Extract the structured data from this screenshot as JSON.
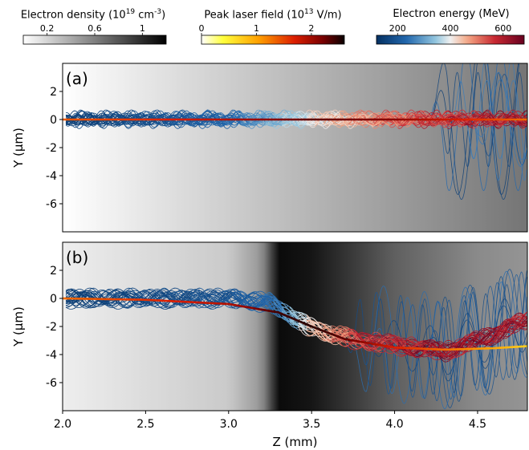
{
  "colorbars": [
    {
      "title_text": "Electron density (10",
      "title_exp": "19",
      "title_unit": " cm",
      "title_unit_exp": "-3",
      "title_close": ")",
      "min": 0,
      "max": 1.2,
      "ticks": [
        0.2,
        0.6,
        1
      ],
      "tick_labels": [
        "0.2",
        "0.6",
        "1"
      ],
      "colormap": "greys"
    },
    {
      "title_text": "Peak laser field (10",
      "title_exp": "13",
      "title_unit": " V/m",
      "title_unit_exp": "",
      "title_close": ")",
      "min": 0,
      "max": 2.6,
      "ticks": [
        0,
        1,
        2
      ],
      "tick_labels": [
        "0",
        "1",
        "2"
      ],
      "colormap": "hot_r"
    },
    {
      "title_text": "Electron energy (MeV)",
      "title_exp": "",
      "title_unit": "",
      "title_unit_exp": "",
      "title_close": "",
      "min": 120,
      "max": 680,
      "ticks": [
        200,
        400,
        600
      ],
      "tick_labels": [
        "200",
        "400",
        "600"
      ],
      "colormap": "RdBu_r"
    }
  ],
  "chart_data": [
    {
      "type": "line",
      "panel_label": "(a)",
      "xlabel": "",
      "ylabel": "Y (μm)",
      "xlim": [
        2.0,
        4.8
      ],
      "ylim": [
        -8,
        4
      ],
      "yticks": [
        2,
        0,
        -2,
        -4,
        -6
      ],
      "ytick_labels": [
        "2",
        "0",
        "-2",
        "-4",
        "-6"
      ],
      "xticks": [],
      "xtick_labels": [],
      "background_density": {
        "z": [
          2.0,
          4.8
        ],
        "n": [
          0.0,
          0.65
        ]
      },
      "laser_centroid": {
        "z": [
          2.0,
          2.5,
          3.0,
          3.5,
          4.0,
          4.5,
          4.8
        ],
        "y": [
          0,
          0,
          0,
          0,
          0,
          0,
          0
        ],
        "field": [
          1.4,
          1.6,
          1.9,
          2.3,
          2.1,
          1.6,
          1.3
        ]
      },
      "electron_bunch": {
        "center": {
          "z": [
            2.0,
            2.5,
            3.0,
            3.5,
            4.0,
            4.5,
            4.8
          ],
          "y": [
            0,
            0,
            0,
            0,
            0,
            0,
            0
          ]
        },
        "oscillation_amplitude": 0.45,
        "betatron_wavelength_mm": 0.17,
        "energy_MeV": {
          "z": [
            2.0,
            2.5,
            3.0,
            3.3,
            3.6,
            4.0,
            4.5,
            4.8
          ],
          "e": [
            150,
            180,
            230,
            330,
            430,
            520,
            590,
            600
          ]
        },
        "scattered_region": {
          "z": [
            4.2,
            4.8
          ],
          "amplitude": 4.0
        }
      }
    },
    {
      "type": "line",
      "panel_label": "(b)",
      "xlabel": "Z (mm)",
      "ylabel": "Y (μm)",
      "xlim": [
        2.0,
        4.8
      ],
      "ylim": [
        -8,
        4
      ],
      "yticks": [
        2,
        0,
        -2,
        -4,
        -6
      ],
      "ytick_labels": [
        "2",
        "0",
        "-2",
        "-4",
        "-6"
      ],
      "xticks": [
        2.0,
        2.5,
        3.0,
        3.5,
        4.0,
        4.5
      ],
      "xtick_labels": [
        "2.0",
        "2.5",
        "3.0",
        "3.5",
        "4.0",
        "4.5"
      ],
      "background_density": {
        "z": [
          2.0,
          3.0,
          3.2,
          3.3,
          3.5,
          4.0,
          4.5,
          4.8
        ],
        "n": [
          0.08,
          0.25,
          0.5,
          1.15,
          1.1,
          0.75,
          0.55,
          0.5
        ]
      },
      "laser_centroid": {
        "z": [
          2.0,
          2.5,
          3.0,
          3.3,
          3.5,
          3.7,
          4.0,
          4.3,
          4.6,
          4.8
        ],
        "y": [
          0,
          -0.1,
          -0.4,
          -1.0,
          -2.0,
          -2.9,
          -3.5,
          -3.65,
          -3.55,
          -3.4
        ],
        "field": [
          1.3,
          1.6,
          1.9,
          2.4,
          2.5,
          2.3,
          1.7,
          1.3,
          1.0,
          0.7
        ]
      },
      "electron_bunch": {
        "center": {
          "z": [
            2.0,
            2.5,
            3.0,
            3.25,
            3.45,
            3.6,
            3.8,
            4.0,
            4.3,
            4.55,
            4.8
          ],
          "y": [
            0,
            0,
            0,
            -0.3,
            -1.8,
            -2.5,
            -3.0,
            -3.3,
            -3.8,
            -2.8,
            -1.5
          ]
        },
        "oscillation_amplitude": 0.5,
        "betatron_wavelength_mm": 0.25,
        "energy_MeV": {
          "z": [
            2.0,
            2.5,
            3.0,
            3.3,
            3.5,
            3.8,
            4.2,
            4.5,
            4.8
          ],
          "e": [
            150,
            170,
            190,
            250,
            430,
            560,
            620,
            620,
            600
          ]
        },
        "scattered_region": {
          "z": [
            3.6,
            4.8
          ],
          "amplitude": 3.0
        }
      }
    }
  ]
}
